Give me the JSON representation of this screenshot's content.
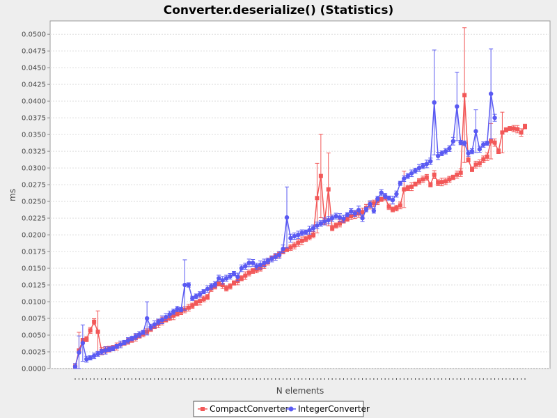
{
  "chart_data": {
    "type": "line",
    "title": "Converter.deserialize() (Statistics)",
    "xlabel": "N elements",
    "ylabel": "ms",
    "ylim": [
      0,
      0.052
    ],
    "yticks": [
      "0.0000",
      "0.0025",
      "0.0050",
      "0.0075",
      "0.0100",
      "0.0125",
      "0.0150",
      "0.0175",
      "0.0200",
      "0.0225",
      "0.0250",
      "0.0275",
      "0.0300",
      "0.0325",
      "0.0350",
      "0.0375",
      "0.0400",
      "0.0425",
      "0.0450",
      "0.0475",
      "0.0500"
    ],
    "grid": true,
    "legend_position": "bottom",
    "series": [
      {
        "name": "CompactConverter",
        "color": "#f25858",
        "values": [
          0.0003,
          0.0027,
          0.0042,
          0.0044,
          0.0057,
          0.007,
          0.0055,
          0.0026,
          0.0028,
          0.0029,
          0.0031,
          0.0033,
          0.0036,
          0.0038,
          0.0041,
          0.0043,
          0.0046,
          0.0049,
          0.0052,
          0.0055,
          0.0059,
          0.0063,
          0.0067,
          0.0071,
          0.0073,
          0.0076,
          0.0079,
          0.0082,
          0.0085,
          0.0088,
          0.0091,
          0.0094,
          0.0098,
          0.0101,
          0.0104,
          0.0107,
          0.012,
          0.0123,
          0.0127,
          0.0125,
          0.012,
          0.0123,
          0.0128,
          0.0131,
          0.0135,
          0.0139,
          0.0143,
          0.0146,
          0.0148,
          0.015,
          0.0155,
          0.016,
          0.0165,
          0.0168,
          0.0171,
          0.0175,
          0.0178,
          0.0181,
          0.0184,
          0.0188,
          0.0191,
          0.0194,
          0.0197,
          0.02,
          0.0255,
          0.0288,
          0.022,
          0.0268,
          0.021,
          0.0214,
          0.0217,
          0.0221,
          0.0224,
          0.0228,
          0.023,
          0.0232,
          0.0234,
          0.024,
          0.0244,
          0.0247,
          0.025,
          0.0253,
          0.0256,
          0.0242,
          0.0238,
          0.024,
          0.0244,
          0.0268,
          0.027,
          0.0272,
          0.0276,
          0.028,
          0.0283,
          0.0286,
          0.0275,
          0.029,
          0.0278,
          0.0279,
          0.028,
          0.0283,
          0.0286,
          0.029,
          0.0293,
          0.0409,
          0.0312,
          0.0298,
          0.0305,
          0.0307,
          0.0313,
          0.0317,
          0.034,
          0.0338,
          0.0325,
          0.0353,
          0.0357,
          0.0359,
          0.0359,
          0.0358,
          0.0353,
          0.0362
        ]
      },
      {
        "name": "IntegerConverter",
        "color": "#5a5af2",
        "values": [
          0.0003,
          0.0024,
          0.0038,
          0.0014,
          0.0016,
          0.0019,
          0.0022,
          0.0025,
          0.0027,
          0.0029,
          0.003,
          0.0033,
          0.0036,
          0.0039,
          0.0042,
          0.0045,
          0.0048,
          0.0051,
          0.0054,
          0.0075,
          0.0062,
          0.0066,
          0.007,
          0.0073,
          0.0077,
          0.0081,
          0.0085,
          0.0089,
          0.0088,
          0.0125,
          0.0125,
          0.0105,
          0.0108,
          0.0111,
          0.0115,
          0.0119,
          0.0123,
          0.0126,
          0.0135,
          0.0132,
          0.0135,
          0.0138,
          0.0142,
          0.0137,
          0.015,
          0.0153,
          0.0158,
          0.0158,
          0.0153,
          0.0155,
          0.0158,
          0.0161,
          0.0164,
          0.0167,
          0.017,
          0.0179,
          0.0226,
          0.0195,
          0.0198,
          0.02,
          0.0203,
          0.0204,
          0.0207,
          0.021,
          0.0214,
          0.0217,
          0.022,
          0.0222,
          0.0225,
          0.0228,
          0.0226,
          0.0224,
          0.023,
          0.0235,
          0.0232,
          0.0237,
          0.0225,
          0.0238,
          0.0246,
          0.0236,
          0.0254,
          0.0263,
          0.0258,
          0.0255,
          0.0252,
          0.0261,
          0.0277,
          0.0284,
          0.0288,
          0.0292,
          0.0296,
          0.03,
          0.0303,
          0.0306,
          0.031,
          0.0398,
          0.0318,
          0.0322,
          0.0325,
          0.0329,
          0.034,
          0.0392,
          0.0338,
          0.0337,
          0.0322,
          0.0325,
          0.0355,
          0.0328,
          0.0335,
          0.0337,
          0.0411,
          0.0375
        ]
      }
    ]
  }
}
